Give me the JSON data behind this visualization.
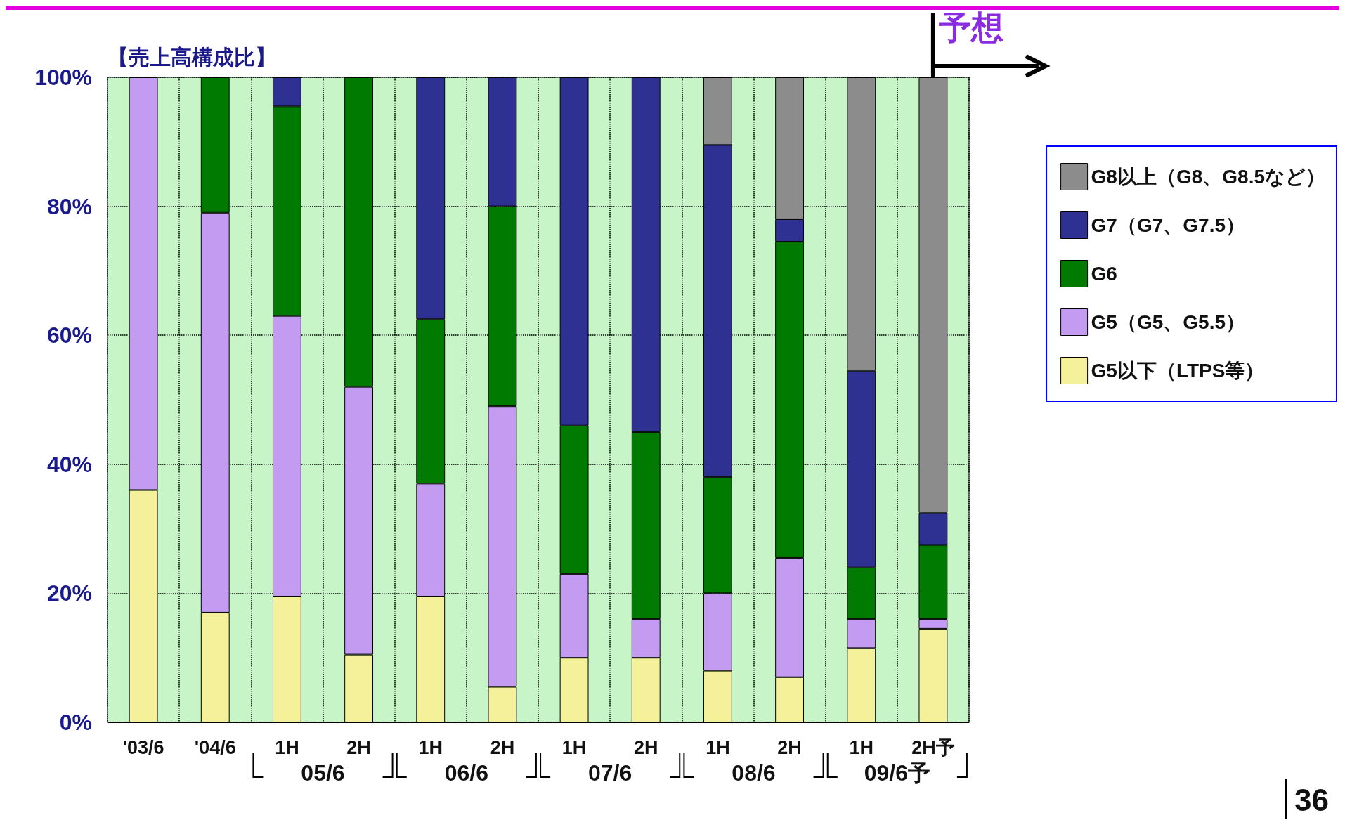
{
  "chart_data": {
    "type": "bar",
    "stacked": true,
    "ylabel": "【売上高構成比】",
    "categories": [
      "'03/6",
      "'04/6",
      "1H",
      "2H",
      "1H",
      "2H",
      "1H",
      "2H",
      "1H",
      "2H",
      "1H",
      "2H予"
    ],
    "series": [
      {
        "name": "G5以下（LTPS等）",
        "color": "#f5f09a",
        "values": [
          36,
          17,
          19.5,
          10.5,
          19.5,
          5.5,
          10,
          10,
          8,
          7,
          11.5,
          14.5
        ]
      },
      {
        "name": "G5（G5、G5.5）",
        "color": "#c39bf0",
        "values": [
          64,
          62,
          43.5,
          41.5,
          17.5,
          43.5,
          13,
          6,
          12,
          18.5,
          4.5,
          1.5
        ]
      },
      {
        "name": "G6",
        "color": "#007a00",
        "values": [
          0,
          21,
          32.5,
          48,
          25.5,
          31,
          23,
          29,
          18,
          49,
          8,
          11.5
        ]
      },
      {
        "name": "G7（G7、G7.5）",
        "color": "#2e3192",
        "values": [
          0,
          0,
          4.5,
          0,
          37.5,
          20,
          54,
          55,
          51.5,
          3.5,
          30.5,
          5
        ]
      },
      {
        "name": "G8以上（G8、G8.5など）",
        "color": "#8c8c8c",
        "values": [
          0,
          0,
          0,
          0,
          0,
          0,
          0,
          0,
          10.5,
          22,
          45.5,
          67.5
        ]
      }
    ],
    "ylim": [
      0,
      100
    ],
    "yticks": [
      {
        "value": 0,
        "label": "0%"
      },
      {
        "value": 20,
        "label": "20%"
      },
      {
        "value": 40,
        "label": "40%"
      },
      {
        "value": 60,
        "label": "60%"
      },
      {
        "value": 80,
        "label": "80%"
      },
      {
        "value": 100,
        "label": "100%"
      }
    ],
    "grid": true,
    "legend": "right",
    "annotations": [
      "予想",
      "05/6",
      "06/6",
      "07/6",
      "08/6",
      "09/6予",
      "36"
    ]
  }
}
